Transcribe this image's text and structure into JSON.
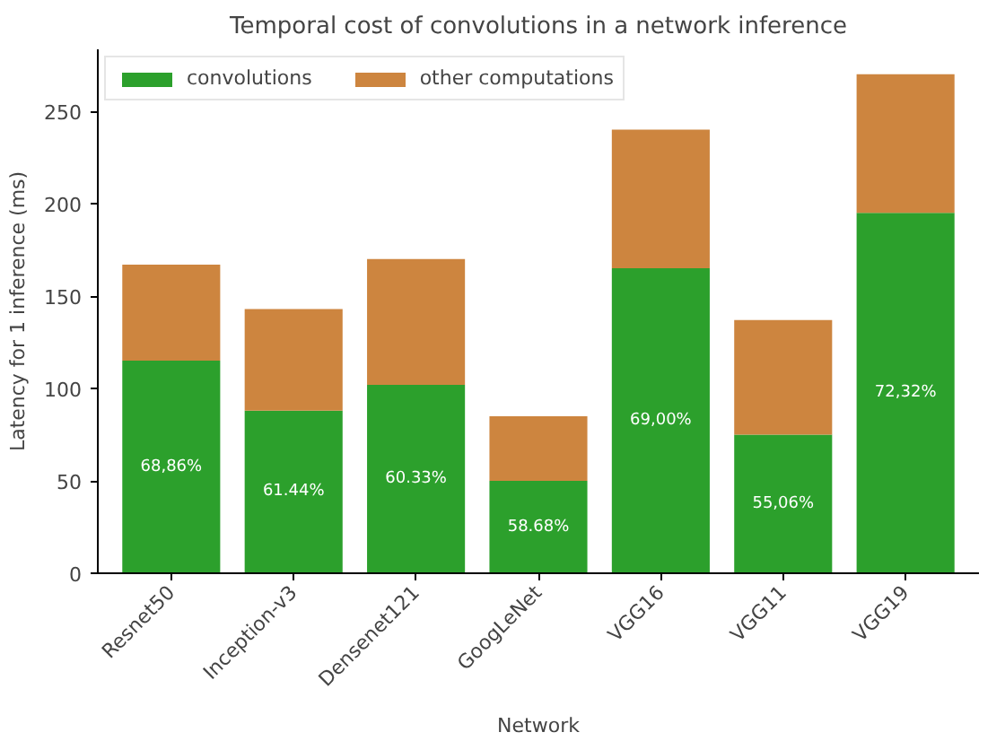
{
  "chart_data": {
    "type": "bar",
    "title": "Temporal cost of convolutions in a network inference",
    "xlabel": "Network",
    "ylabel": "Latency for 1 inference (ms)",
    "categories": [
      "Resnet50",
      "Inception-v3",
      "Densenet121",
      "GoogLeNet",
      "VGG16",
      "VGG11",
      "VGG19"
    ],
    "stacked": true,
    "series": [
      {
        "name": "convolutions",
        "color": "#2ca02c",
        "values": [
          115,
          88,
          102,
          50,
          165,
          75,
          195
        ]
      },
      {
        "name": "other computations",
        "color": "#cd853f",
        "values": [
          52,
          55,
          68,
          35,
          75,
          62,
          75
        ]
      }
    ],
    "annotations": [
      "68,86%",
      "61.44%",
      "60.33%",
      "58.68%",
      "69,00%",
      "55,06%",
      "72,32%"
    ],
    "ylim": [
      0,
      283.5
    ],
    "yticks": [
      0,
      50,
      100,
      150,
      200,
      250
    ],
    "grid": false,
    "legend": "top left"
  }
}
